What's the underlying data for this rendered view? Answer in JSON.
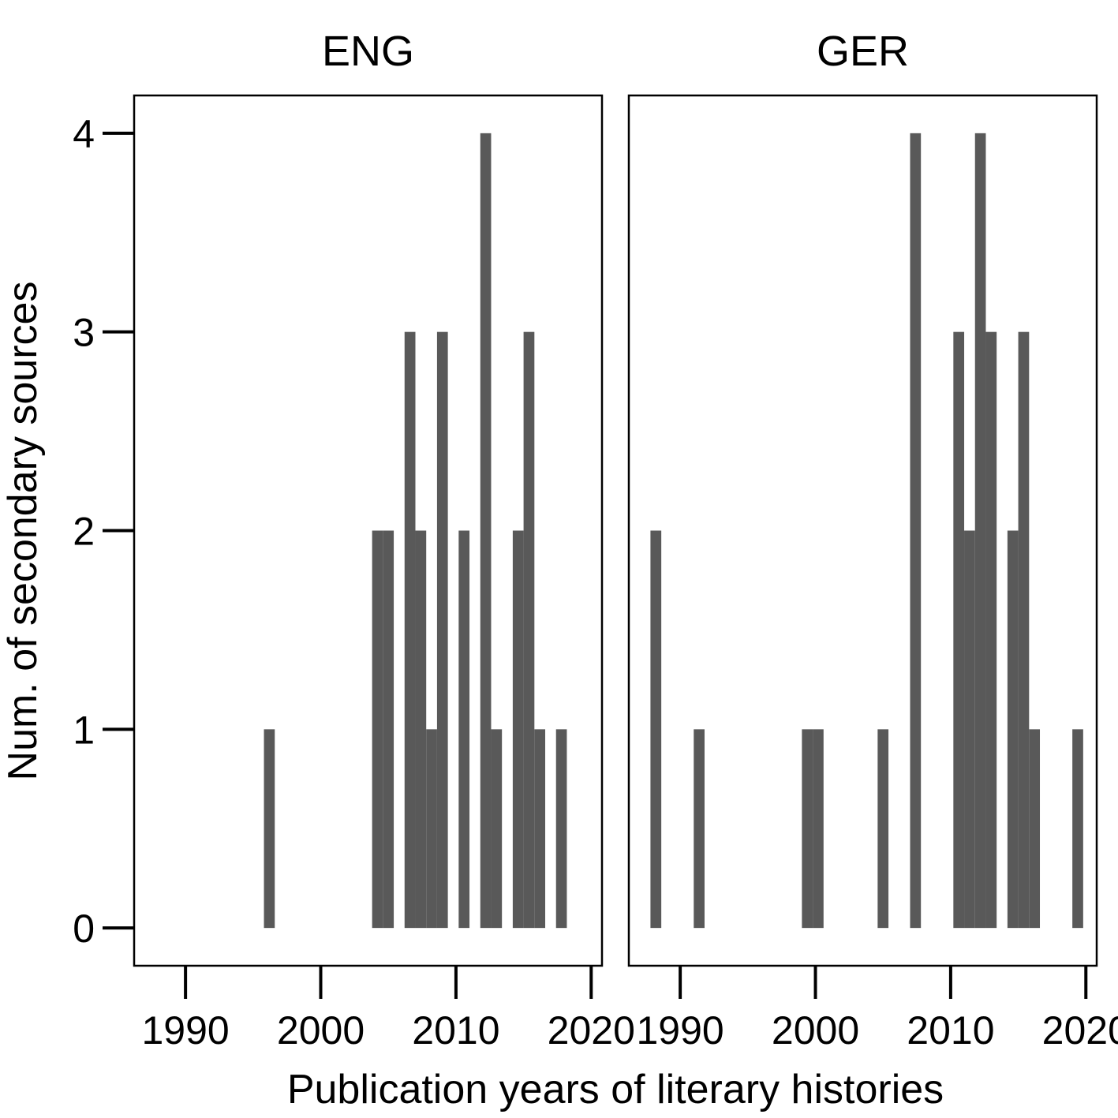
{
  "chart_data": {
    "type": "bar",
    "xlabel": "Publication years of literary histories",
    "ylabel": "Num. of secondary sources",
    "xlim": [
      1986.2,
      2020.8
    ],
    "ylim": [
      -0.19,
      4.19
    ],
    "x_ticks": [
      "1990",
      "2000",
      "2010",
      "2020"
    ],
    "y_ticks": [
      "0",
      "1",
      "2",
      "3",
      "4"
    ],
    "bar_color": "#595959",
    "grid": false,
    "legend": "none",
    "panels": [
      {
        "title": "ENG",
        "bars": [
          {
            "x": 1995.8,
            "y": 1
          },
          {
            "x": 2003.8,
            "y": 2
          },
          {
            "x": 2004.6,
            "y": 2
          },
          {
            "x": 2006.2,
            "y": 3
          },
          {
            "x": 2007.0,
            "y": 2
          },
          {
            "x": 2007.8,
            "y": 1
          },
          {
            "x": 2008.6,
            "y": 3
          },
          {
            "x": 2010.2,
            "y": 2
          },
          {
            "x": 2011.8,
            "y": 4
          },
          {
            "x": 2012.6,
            "y": 1
          },
          {
            "x": 2014.2,
            "y": 2
          },
          {
            "x": 2015.0,
            "y": 3
          },
          {
            "x": 2015.8,
            "y": 1
          },
          {
            "x": 2017.4,
            "y": 1
          }
        ]
      },
      {
        "title": "GER",
        "bars": [
          {
            "x": 1987.8,
            "y": 2
          },
          {
            "x": 1991.0,
            "y": 1
          },
          {
            "x": 1999.0,
            "y": 1
          },
          {
            "x": 1999.8,
            "y": 1
          },
          {
            "x": 2004.6,
            "y": 1
          },
          {
            "x": 2007.0,
            "y": 4
          },
          {
            "x": 2010.2,
            "y": 3
          },
          {
            "x": 2011.0,
            "y": 2
          },
          {
            "x": 2011.8,
            "y": 4
          },
          {
            "x": 2012.6,
            "y": 3
          },
          {
            "x": 2014.2,
            "y": 2
          },
          {
            "x": 2015.0,
            "y": 3
          },
          {
            "x": 2015.8,
            "y": 1
          },
          {
            "x": 2019.0,
            "y": 1
          }
        ]
      }
    ]
  }
}
